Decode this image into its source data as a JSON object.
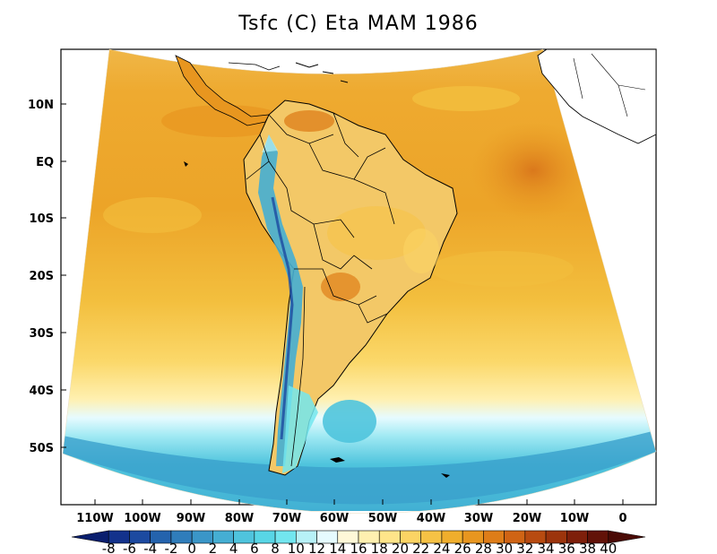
{
  "title": "Tsfc (C) Eta MAM 1986",
  "map": {
    "lat_labels": [
      "10N",
      "EQ",
      "10S",
      "20S",
      "30S",
      "40S",
      "50S"
    ],
    "lon_labels": [
      "110W",
      "100W",
      "90W",
      "80W",
      "70W",
      "60W",
      "50W",
      "40W",
      "30W",
      "20W",
      "10W",
      "0"
    ]
  },
  "colorbar": {
    "labels": [
      "-8",
      "-6",
      "-4",
      "-2",
      "0",
      "2",
      "4",
      "6",
      "8",
      "10",
      "12",
      "14",
      "16",
      "18",
      "20",
      "22",
      "24",
      "26",
      "28",
      "30",
      "32",
      "34",
      "36",
      "38",
      "40"
    ],
    "colors": [
      "#0a1e6e",
      "#13328c",
      "#1c4aa0",
      "#2463ad",
      "#2f7dbb",
      "#3a96c8",
      "#45aed3",
      "#4fc4dd",
      "#58d6e6",
      "#72e6ef",
      "#b7f1f7",
      "#e6fbff",
      "#fff8d8",
      "#fff0b0",
      "#ffe58a",
      "#fbd464",
      "#f6c245",
      "#f0ae2c",
      "#e8961f",
      "#de7d18",
      "#d06414",
      "#b84b10",
      "#9c340c",
      "#7e1f0a",
      "#621208",
      "#4a0a05"
    ]
  },
  "colors": {
    "ocean_warm": "#eeaa28",
    "ocean_mid": "#f6c245",
    "land": "#f3c867",
    "cold": "#4fc4dd",
    "deep_cold": "#3a96c8"
  }
}
